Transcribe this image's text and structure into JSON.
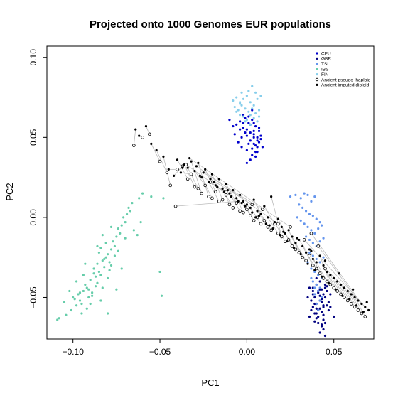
{
  "chart_data": {
    "type": "scatter",
    "title": "Projected onto 1000 Genomes EUR populations",
    "xlabel": "PC1",
    "ylabel": "PC2",
    "xlim": [
      -0.115,
      0.073
    ],
    "ylim": [
      -0.076,
      0.107
    ],
    "xticks": [
      -0.1,
      -0.05,
      0.0,
      0.05
    ],
    "xtick_labels": [
      "−0.10",
      "−0.05",
      "0.00",
      "0.05"
    ],
    "yticks": [
      -0.05,
      0.0,
      0.05,
      0.1
    ],
    "ytick_labels": [
      "−0.05",
      "0.00",
      "0.05",
      "0.10"
    ],
    "grid": false,
    "legend_position": "top-right",
    "legend": [
      {
        "label": "CEU",
        "color": "#0000cd",
        "marker": "dot"
      },
      {
        "label": "GBR",
        "color": "#000080",
        "marker": "dot"
      },
      {
        "label": "TSI",
        "color": "#6495ed",
        "marker": "dot"
      },
      {
        "label": "IBS",
        "color": "#66cdaa",
        "marker": "dot"
      },
      {
        "label": "FIN",
        "color": "#87ceeb",
        "marker": "dot"
      },
      {
        "label": "Ancient pseudo–haploid",
        "color": "#000000",
        "marker": "open-circle"
      },
      {
        "label": "Ancient imputed diploid",
        "color": "#000000",
        "marker": "dot"
      }
    ],
    "series": [
      {
        "name": "CEU",
        "color": "#0000cd",
        "x": [
          -0.008,
          -0.006,
          -0.004,
          -0.002,
          -0.001,
          0.0,
          0.001,
          0.002,
          0.003,
          0.004,
          0.005,
          0.006,
          0.007,
          -0.005,
          -0.003,
          0.0,
          0.002,
          0.004,
          0.006,
          0.008,
          -0.007,
          -0.004,
          -0.002,
          0.001,
          0.003,
          0.005,
          0.007,
          -0.001,
          0.002,
          0.004,
          0.006,
          -0.01,
          0.0,
          0.003,
          0.005,
          0.008,
          -0.002,
          0.001,
          0.004,
          0.006,
          0.003,
          0.007,
          -0.003,
          0.002,
          0.005,
          0.009,
          0.0,
          0.004
        ],
        "y": [
          0.057,
          0.058,
          0.06,
          0.056,
          0.062,
          0.055,
          0.059,
          0.053,
          0.061,
          0.052,
          0.057,
          0.05,
          0.054,
          0.047,
          0.05,
          0.051,
          0.048,
          0.046,
          0.044,
          0.049,
          0.052,
          0.055,
          0.064,
          0.046,
          0.043,
          0.041,
          0.047,
          0.053,
          0.058,
          0.054,
          0.041,
          0.061,
          0.042,
          0.039,
          0.045,
          0.051,
          0.059,
          0.063,
          0.059,
          0.048,
          0.067,
          0.056,
          0.044,
          0.036,
          0.038,
          0.044,
          0.034,
          0.05
        ]
      },
      {
        "name": "GBR",
        "color": "#000080",
        "x": [
          0.036,
          0.038,
          0.04,
          0.042,
          0.044,
          0.039,
          0.041,
          0.043,
          0.045,
          0.037,
          0.04,
          0.042,
          0.044,
          0.046,
          0.038,
          0.041,
          0.043,
          0.045,
          0.039,
          0.042,
          0.044,
          0.04,
          0.043,
          0.046,
          0.041,
          0.044,
          0.038,
          0.042,
          0.045,
          0.04,
          0.043,
          0.035,
          0.047,
          0.039,
          0.044,
          0.041,
          0.046,
          0.037,
          0.042,
          0.048,
          0.04,
          0.045,
          0.043,
          0.039,
          0.047,
          0.041,
          0.036,
          0.044,
          0.05,
          0.042,
          0.038,
          0.046,
          0.043,
          0.04,
          0.048,
          0.045
        ],
        "y": [
          -0.044,
          -0.046,
          -0.042,
          -0.045,
          -0.048,
          -0.05,
          -0.047,
          -0.051,
          -0.044,
          -0.052,
          -0.054,
          -0.049,
          -0.055,
          -0.046,
          -0.056,
          -0.058,
          -0.053,
          -0.05,
          -0.06,
          -0.057,
          -0.061,
          -0.063,
          -0.059,
          -0.055,
          -0.066,
          -0.064,
          -0.048,
          -0.04,
          -0.042,
          -0.038,
          -0.068,
          -0.05,
          -0.058,
          -0.054,
          -0.07,
          -0.062,
          -0.043,
          -0.058,
          -0.052,
          -0.048,
          -0.06,
          -0.066,
          -0.045,
          -0.065,
          -0.053,
          -0.046,
          -0.062,
          -0.056,
          -0.062,
          -0.072,
          -0.044,
          -0.04,
          -0.067,
          -0.057,
          -0.056,
          -0.074
        ]
      },
      {
        "name": "TSI",
        "color": "#6495ed",
        "x": [
          0.025,
          0.028,
          0.031,
          0.033,
          0.035,
          0.037,
          0.039,
          0.03,
          0.032,
          0.034,
          0.036,
          0.038,
          0.04,
          0.042,
          0.029,
          0.031,
          0.033,
          0.035,
          0.037,
          0.039,
          0.041,
          0.043,
          0.034,
          0.036,
          0.038,
          0.04,
          0.042,
          0.044,
          0.036,
          0.038,
          0.04,
          0.042,
          0.044,
          0.037,
          0.039,
          0.041,
          0.043,
          0.038,
          0.04,
          0.042,
          0.039,
          0.041,
          0.043,
          0.04,
          0.042,
          0.035,
          0.037,
          0.039,
          0.041
        ],
        "y": [
          0.013,
          0.014,
          0.012,
          0.015,
          0.014,
          0.01,
          0.013,
          0.008,
          0.006,
          0.004,
          0.002,
          0.001,
          -0.001,
          -0.003,
          0.0,
          -0.002,
          -0.004,
          -0.006,
          -0.008,
          -0.01,
          -0.007,
          -0.005,
          -0.012,
          -0.014,
          -0.016,
          -0.018,
          -0.015,
          -0.013,
          -0.022,
          -0.024,
          -0.026,
          -0.028,
          -0.025,
          -0.032,
          -0.034,
          -0.036,
          -0.038,
          -0.04,
          -0.042,
          -0.044,
          -0.048,
          -0.046,
          -0.05,
          -0.054,
          -0.052,
          -0.028,
          -0.038,
          -0.044,
          -0.058
        ]
      },
      {
        "name": "IBS",
        "color": "#66cdaa",
        "x": [
          -0.108,
          -0.104,
          -0.101,
          -0.098,
          -0.096,
          -0.1,
          -0.097,
          -0.094,
          -0.092,
          -0.095,
          -0.091,
          -0.089,
          -0.093,
          -0.09,
          -0.087,
          -0.085,
          -0.088,
          -0.086,
          -0.083,
          -0.081,
          -0.084,
          -0.082,
          -0.079,
          -0.08,
          -0.078,
          -0.076,
          -0.077,
          -0.075,
          -0.073,
          -0.074,
          -0.072,
          -0.07,
          -0.071,
          -0.069,
          -0.067,
          -0.065,
          -0.063,
          -0.061,
          -0.086,
          -0.091,
          -0.096,
          -0.083,
          -0.08,
          -0.088,
          -0.093,
          -0.099,
          -0.102,
          -0.079,
          -0.082,
          -0.085,
          -0.076,
          -0.089,
          -0.092,
          -0.087,
          -0.084,
          -0.081,
          -0.078,
          -0.074,
          -0.07,
          -0.068,
          -0.066,
          -0.062,
          -0.055,
          -0.048,
          -0.049,
          -0.05,
          -0.06,
          -0.105,
          -0.109,
          -0.095,
          -0.098,
          -0.084,
          -0.08,
          -0.075,
          -0.072,
          -0.09,
          -0.086,
          -0.083,
          -0.078,
          -0.094
        ],
        "y": [
          -0.063,
          -0.061,
          -0.058,
          -0.055,
          -0.052,
          -0.05,
          -0.048,
          -0.046,
          -0.044,
          -0.054,
          -0.05,
          -0.047,
          -0.042,
          -0.039,
          -0.037,
          -0.034,
          -0.032,
          -0.029,
          -0.027,
          -0.025,
          -0.036,
          -0.031,
          -0.028,
          -0.023,
          -0.02,
          -0.018,
          -0.015,
          -0.012,
          -0.01,
          -0.007,
          -0.005,
          -0.003,
          0.0,
          0.002,
          0.004,
          -0.008,
          -0.011,
          -0.003,
          -0.041,
          -0.045,
          -0.047,
          -0.044,
          -0.038,
          -0.035,
          -0.029,
          -0.051,
          -0.046,
          -0.033,
          -0.026,
          -0.022,
          -0.024,
          -0.049,
          -0.057,
          -0.043,
          -0.019,
          -0.016,
          -0.03,
          -0.021,
          -0.013,
          0.006,
          0.009,
          0.012,
          0.013,
          0.012,
          -0.049,
          -0.034,
          0.015,
          -0.053,
          -0.064,
          -0.06,
          -0.04,
          -0.052,
          -0.06,
          -0.045,
          -0.032,
          -0.054,
          -0.018,
          -0.011,
          -0.006,
          -0.036
        ]
      },
      {
        "name": "FIN",
        "color": "#87ceeb",
        "x": [
          -0.008,
          -0.006,
          -0.004,
          -0.002,
          0.0,
          0.002,
          0.004,
          0.006,
          0.008,
          -0.007,
          -0.005,
          -0.003,
          -0.001,
          0.001,
          0.003,
          0.005,
          0.007,
          -0.004,
          -0.002,
          0.0,
          0.002,
          0.004,
          0.006,
          -0.003,
          0.001,
          0.005,
          0.003,
          -0.006,
          0.007,
          -0.001,
          0.002,
          -0.004
        ],
        "y": [
          0.073,
          0.075,
          0.071,
          0.074,
          0.076,
          0.072,
          0.07,
          0.074,
          0.076,
          0.069,
          0.067,
          0.07,
          0.068,
          0.066,
          0.068,
          0.065,
          0.067,
          0.064,
          0.063,
          0.061,
          0.064,
          0.062,
          0.06,
          0.078,
          0.079,
          0.078,
          0.082,
          0.066,
          0.063,
          0.06,
          0.058,
          0.072
        ]
      },
      {
        "name": "Ancient pseudo–haploid",
        "color": "#000000",
        "marker": "open-circle",
        "x": [
          -0.065,
          -0.06,
          -0.056,
          -0.05,
          -0.046,
          -0.044,
          -0.04,
          -0.037,
          -0.034,
          -0.032,
          -0.03,
          -0.028,
          -0.026,
          -0.024,
          -0.022,
          -0.02,
          -0.018,
          -0.016,
          -0.014,
          -0.012,
          -0.01,
          -0.008,
          -0.006,
          -0.004,
          -0.002,
          0.0,
          0.002,
          0.004,
          0.006,
          0.008,
          0.01,
          0.012,
          0.014,
          0.016,
          0.018,
          0.02,
          0.022,
          0.024,
          0.026,
          0.028,
          0.03,
          0.032,
          0.034,
          0.036,
          0.038,
          0.04,
          0.042,
          0.044,
          0.046,
          0.048,
          0.05,
          0.052,
          0.054,
          0.056,
          0.058,
          0.06,
          0.062,
          0.064,
          0.066,
          0.068,
          0.041,
          0.037,
          0.033,
          0.045,
          0.025,
          0.018,
          0.009,
          0.003,
          -0.012,
          -0.021,
          -0.035,
          -0.041
        ],
        "y": [
          0.045,
          0.05,
          0.052,
          0.035,
          0.028,
          0.02,
          0.03,
          0.032,
          0.024,
          0.027,
          0.019,
          0.018,
          0.015,
          0.02,
          0.013,
          0.012,
          0.016,
          0.01,
          0.011,
          0.014,
          0.008,
          0.006,
          0.009,
          0.004,
          0.003,
          0.005,
          0.001,
          -0.002,
          0.0,
          -0.004,
          -0.002,
          -0.006,
          -0.008,
          -0.004,
          -0.01,
          -0.012,
          -0.015,
          -0.014,
          -0.018,
          -0.02,
          -0.022,
          -0.025,
          -0.027,
          -0.024,
          -0.03,
          -0.032,
          -0.035,
          -0.038,
          -0.04,
          -0.042,
          -0.044,
          -0.046,
          -0.048,
          -0.05,
          -0.052,
          -0.054,
          -0.056,
          -0.058,
          -0.06,
          -0.062,
          -0.018,
          -0.01,
          -0.014,
          -0.032,
          -0.006,
          -0.004,
          0.005,
          0.008,
          0.016,
          0.022,
          0.033,
          0.007
        ]
      },
      {
        "name": "Ancient imputed diploid",
        "color": "#000000",
        "marker": "dot",
        "x": [
          -0.064,
          -0.062,
          -0.058,
          -0.055,
          -0.052,
          -0.048,
          -0.045,
          -0.042,
          -0.04,
          -0.038,
          -0.036,
          -0.034,
          -0.032,
          -0.03,
          -0.028,
          -0.026,
          -0.024,
          -0.022,
          -0.02,
          -0.018,
          -0.016,
          -0.014,
          -0.012,
          -0.01,
          -0.008,
          -0.006,
          -0.004,
          -0.002,
          0.0,
          0.002,
          0.004,
          0.006,
          0.008,
          0.01,
          0.012,
          0.014,
          0.016,
          0.018,
          0.02,
          0.022,
          0.024,
          0.026,
          0.028,
          0.03,
          0.032,
          0.034,
          0.036,
          0.038,
          0.04,
          0.042,
          0.044,
          0.046,
          0.048,
          0.05,
          0.052,
          0.054,
          0.056,
          0.058,
          0.06,
          0.062,
          0.064,
          0.066,
          0.068,
          0.07,
          -0.033,
          -0.029,
          -0.025,
          -0.021,
          -0.017,
          -0.013,
          -0.009,
          -0.005,
          -0.001,
          0.003,
          0.007,
          0.011,
          0.015,
          0.019,
          0.023,
          0.027,
          0.031,
          0.035,
          0.039,
          0.043,
          0.047,
          0.051,
          0.055,
          0.059,
          0.063,
          0.067,
          -0.037,
          -0.027,
          -0.019,
          -0.011,
          -0.003,
          0.005,
          0.013,
          0.021,
          0.029,
          0.037,
          0.045,
          0.053,
          0.061,
          0.069
        ],
        "y": [
          0.055,
          0.051,
          0.057,
          0.046,
          0.042,
          0.038,
          0.03,
          0.026,
          0.036,
          0.028,
          0.033,
          0.031,
          0.035,
          0.029,
          0.034,
          0.025,
          0.03,
          0.022,
          0.027,
          0.02,
          0.024,
          0.018,
          0.021,
          0.015,
          0.017,
          0.012,
          0.014,
          0.01,
          0.008,
          0.006,
          0.011,
          0.004,
          0.002,
          0.007,
          0.0,
          0.013,
          -0.003,
          -0.001,
          -0.006,
          -0.01,
          -0.008,
          -0.012,
          -0.016,
          -0.014,
          -0.018,
          -0.022,
          -0.02,
          -0.026,
          -0.028,
          -0.024,
          -0.03,
          -0.034,
          -0.036,
          -0.038,
          -0.04,
          -0.042,
          -0.044,
          -0.046,
          -0.048,
          -0.05,
          -0.052,
          -0.054,
          -0.056,
          -0.058,
          0.037,
          0.032,
          0.028,
          0.024,
          0.019,
          0.016,
          0.013,
          0.01,
          0.007,
          0.003,
          0.001,
          -0.004,
          -0.007,
          -0.011,
          -0.015,
          -0.019,
          -0.023,
          -0.029,
          -0.033,
          -0.037,
          -0.041,
          -0.045,
          -0.049,
          -0.051,
          -0.055,
          -0.059,
          0.031,
          0.026,
          0.022,
          0.017,
          0.009,
          0.0,
          -0.005,
          -0.009,
          -0.013,
          -0.021,
          -0.027,
          -0.035,
          -0.045,
          -0.053
        ]
      }
    ],
    "connector_color": "#bbbbbb"
  }
}
